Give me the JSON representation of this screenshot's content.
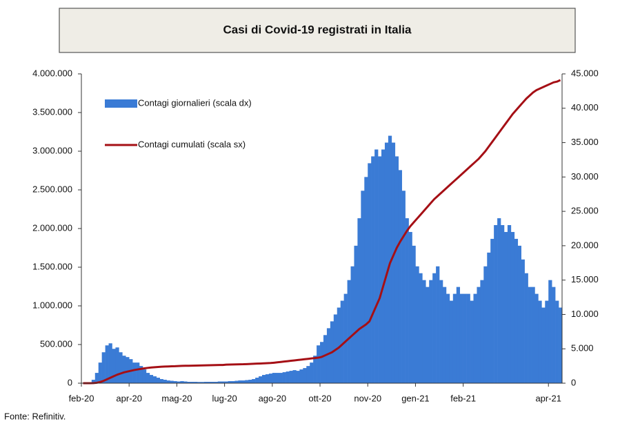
{
  "chart_data": {
    "type": "bar-line",
    "title": "Casi di Covid-19 registrati in Italia",
    "source": "Fonte: Refinitiv.",
    "categories": [
      "feb-20",
      null,
      null,
      null,
      null,
      null,
      null,
      null,
      null,
      null,
      null,
      null,
      null,
      null,
      "apr-20",
      null,
      null,
      null,
      null,
      null,
      null,
      null,
      null,
      null,
      null,
      null,
      null,
      null,
      "mag-20",
      null,
      null,
      null,
      null,
      null,
      null,
      null,
      null,
      null,
      null,
      null,
      null,
      null,
      "lug-20",
      null,
      null,
      null,
      null,
      null,
      null,
      null,
      null,
      null,
      null,
      null,
      null,
      null,
      "ago-20",
      null,
      null,
      null,
      null,
      null,
      null,
      null,
      null,
      null,
      null,
      null,
      null,
      null,
      "ott-20",
      null,
      null,
      null,
      null,
      null,
      null,
      null,
      null,
      null,
      null,
      null,
      null,
      null,
      "nov-20",
      null,
      null,
      null,
      null,
      null,
      null,
      null,
      null,
      null,
      null,
      null,
      null,
      null,
      "gen-21",
      null,
      null,
      null,
      null,
      null,
      null,
      null,
      null,
      null,
      null,
      null,
      null,
      null,
      "feb-21",
      null,
      null,
      null,
      null,
      null,
      null,
      null,
      null,
      null,
      null,
      null,
      null,
      null,
      null,
      null,
      null,
      null,
      null,
      null,
      null,
      null,
      null,
      null,
      null,
      "apr-21",
      null,
      null,
      null
    ],
    "series": [
      {
        "name": "Contagi giornalieri (scala dx)",
        "color": "#3a7bd5",
        "axis": "y2",
        "kind": "bar",
        "values": [
          0,
          0,
          100,
          500,
          1500,
          3000,
          4500,
          5500,
          5800,
          5000,
          5200,
          4500,
          4000,
          3800,
          3500,
          3000,
          3000,
          2500,
          2000,
          1500,
          1200,
          1000,
          800,
          600,
          500,
          400,
          350,
          300,
          250,
          300,
          250,
          200,
          200,
          200,
          180,
          180,
          200,
          200,
          200,
          200,
          250,
          250,
          250,
          300,
          300,
          350,
          400,
          400,
          450,
          500,
          600,
          800,
          1000,
          1200,
          1300,
          1400,
          1500,
          1500,
          1500,
          1600,
          1700,
          1800,
          1900,
          1800,
          2000,
          2200,
          2500,
          3000,
          4000,
          5500,
          6000,
          7000,
          8000,
          9000,
          10000,
          11000,
          12000,
          13000,
          15000,
          17000,
          20000,
          24000,
          28000,
          30000,
          32000,
          33000,
          34000,
          33000,
          34000,
          35000,
          36000,
          35000,
          33000,
          31000,
          28000,
          24000,
          22000,
          20000,
          17000,
          16000,
          15000,
          14000,
          15000,
          16000,
          17000,
          15000,
          14000,
          13000,
          12000,
          13000,
          14000,
          13000,
          13000,
          13000,
          12000,
          13000,
          14000,
          15000,
          17000,
          19000,
          21000,
          23000,
          24000,
          23000,
          22000,
          23000,
          22000,
          21000,
          20000,
          18000,
          16000,
          14000,
          14000,
          13000,
          12000,
          11000,
          12000,
          15000,
          14000,
          12000,
          11000
        ]
      },
      {
        "name": "Contagi cumulati (scala sx)",
        "color": "#a50f15",
        "axis": "y",
        "kind": "line",
        "values": [
          0,
          0,
          0,
          1000,
          5000,
          15000,
          30000,
          50000,
          70000,
          90000,
          110000,
          125000,
          140000,
          150000,
          160000,
          170000,
          178000,
          185000,
          192000,
          198000,
          203000,
          207000,
          210000,
          213000,
          215000,
          217000,
          219000,
          220000,
          222000,
          224000,
          225000,
          226000,
          227000,
          228000,
          229000,
          230000,
          231000,
          232000,
          233000,
          234000,
          235000,
          236000,
          240000,
          241000,
          242000,
          243000,
          244000,
          245000,
          247000,
          249000,
          251000,
          253000,
          255000,
          257000,
          259000,
          261000,
          265000,
          270000,
          275000,
          280000,
          285000,
          290000,
          295000,
          300000,
          305000,
          310000,
          315000,
          320000,
          325000,
          330000,
          340000,
          360000,
          380000,
          400000,
          430000,
          460000,
          500000,
          540000,
          580000,
          620000,
          660000,
          700000,
          730000,
          760000,
          800000,
          900000,
          1000000,
          1100000,
          1250000,
          1400000,
          1550000,
          1650000,
          1750000,
          1830000,
          1900000,
          1970000,
          2030000,
          2080000,
          2130000,
          2180000,
          2230000,
          2280000,
          2330000,
          2380000,
          2420000,
          2460000,
          2500000,
          2540000,
          2580000,
          2620000,
          2660000,
          2700000,
          2740000,
          2780000,
          2820000,
          2860000,
          2900000,
          2950000,
          3000000,
          3060000,
          3120000,
          3180000,
          3240000,
          3300000,
          3360000,
          3420000,
          3480000,
          3530000,
          3580000,
          3630000,
          3680000,
          3720000,
          3760000,
          3790000,
          3810000,
          3830000,
          3850000,
          3870000,
          3890000,
          3900000,
          3920000
        ]
      }
    ],
    "ylim": [
      0,
      4000000
    ],
    "yticks": [
      0,
      {
        "value": 500000,
        "label": "500.000"
      },
      {
        "value": 1000000,
        "label": "1.000.000"
      },
      {
        "value": 1500000,
        "label": "1.500.000"
      },
      {
        "value": 2000000,
        "label": "2.000.000"
      },
      {
        "value": 2500000,
        "label": "2.500.000"
      },
      {
        "value": 3000000,
        "label": "3.000.000"
      },
      {
        "value": 3500000,
        "label": "3.500.000"
      },
      {
        "value": 4000000,
        "label": "4.000.000"
      }
    ],
    "y2lim": [
      0,
      45000
    ],
    "y2ticks": [
      0,
      {
        "value": 5000,
        "label": "5.000"
      },
      {
        "value": 10000,
        "label": "10.000"
      },
      {
        "value": 15000,
        "label": "15.000"
      },
      {
        "value": 20000,
        "label": "20.000"
      },
      {
        "value": 25000,
        "label": "25.000"
      },
      {
        "value": 30000,
        "label": "30.000"
      },
      {
        "value": 35000,
        "label": "35.000"
      },
      {
        "value": 40000,
        "label": "40.000"
      },
      {
        "value": 45000,
        "label": "45.000"
      }
    ],
    "grid": false
  }
}
